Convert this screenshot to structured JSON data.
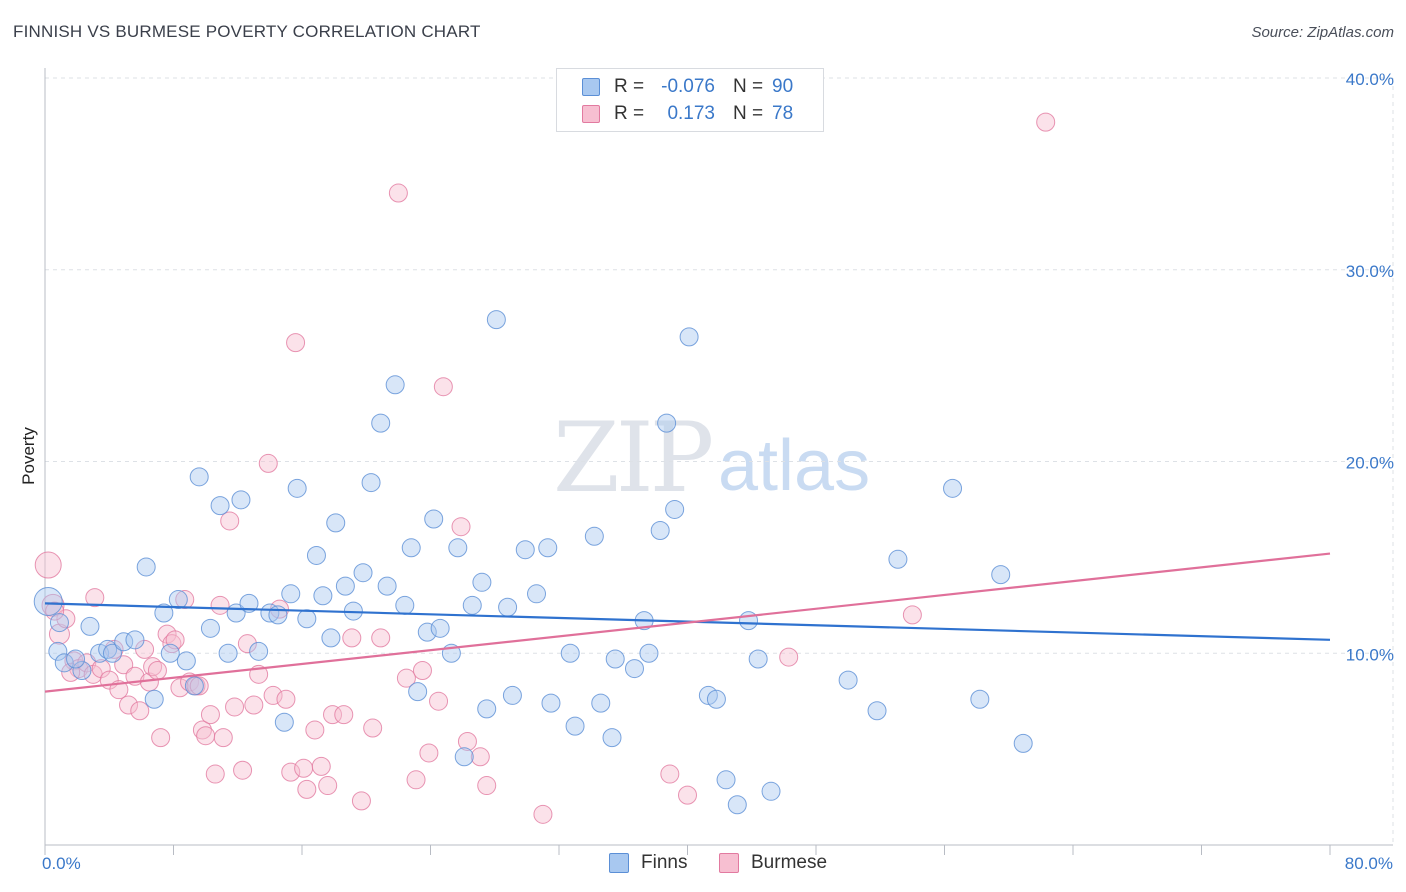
{
  "title": "FINNISH VS BURMESE POVERTY CORRELATION CHART",
  "source": "Source: ZipAtlas.com",
  "watermark": {
    "zip": "ZIP",
    "atlas": "atlas"
  },
  "legend": {
    "rows": [
      {
        "r_label": "R =",
        "r_value": "-0.076",
        "n_label": "N =",
        "n_value": "90",
        "color": "#a8c8f0",
        "border": "#5b8fd6"
      },
      {
        "r_label": "R =",
        "r_value": "0.173",
        "n_label": "N =",
        "n_value": "78",
        "color": "#f7bfd1",
        "border": "#e27aa0"
      }
    ]
  },
  "bottom_legend": {
    "finns": "Finns",
    "burmese": "Burmese"
  },
  "colors": {
    "finns_fill": "#a8c8f0",
    "finns_stroke": "#5b8fd6",
    "finns_line": "#2f72cf",
    "burmese_fill": "#f7bfd1",
    "burmese_stroke": "#e27aa0",
    "burmese_line": "#e0709a",
    "grid": "#dde1e6",
    "axis_text": "#3a78c9"
  },
  "chart_data": {
    "type": "scatter",
    "title": "FINNISH VS BURMESE POVERTY CORRELATION CHART",
    "xlabel": "",
    "ylabel": "Poverty",
    "xlim": [
      0,
      80
    ],
    "ylim": [
      0,
      40
    ],
    "x_tick_labels": [
      "0.0%",
      "80.0%"
    ],
    "y_ticks": [
      10,
      20,
      30,
      40
    ],
    "y_tick_labels": [
      "10.0%",
      "20.0%",
      "30.0%",
      "40.0%"
    ],
    "grid": true,
    "legend_position": "top-center",
    "series": [
      {
        "name": "Finns",
        "r": -0.076,
        "n": 90,
        "trend": [
          [
            0,
            12.6
          ],
          [
            80,
            10.7
          ]
        ],
        "points": [
          [
            0.2,
            12.7,
            14
          ],
          [
            0.8,
            10.1,
            9
          ],
          [
            1.2,
            9.5,
            9
          ],
          [
            2.3,
            9.1,
            9
          ],
          [
            2.8,
            11.4,
            9
          ],
          [
            3.4,
            10.0,
            9
          ],
          [
            3.9,
            10.2,
            9
          ],
          [
            4.2,
            10.0,
            9
          ],
          [
            4.9,
            10.6,
            9
          ],
          [
            5.6,
            10.7,
            9
          ],
          [
            6.3,
            14.5,
            9
          ],
          [
            6.8,
            7.6,
            9
          ],
          [
            7.4,
            12.1,
            9
          ],
          [
            7.8,
            10.0,
            9
          ],
          [
            8.3,
            12.8,
            9
          ],
          [
            8.8,
            9.6,
            9
          ],
          [
            9.3,
            8.3,
            9
          ],
          [
            9.6,
            19.2,
            9
          ],
          [
            10.3,
            11.3,
            9
          ],
          [
            10.9,
            17.7,
            9
          ],
          [
            11.4,
            10.0,
            9
          ],
          [
            11.9,
            12.1,
            9
          ],
          [
            12.2,
            18.0,
            9
          ],
          [
            12.7,
            12.6,
            9
          ],
          [
            13.3,
            10.1,
            9
          ],
          [
            14.0,
            12.1,
            9
          ],
          [
            14.5,
            12.0,
            9
          ],
          [
            14.9,
            6.4,
            9
          ],
          [
            15.3,
            13.1,
            9
          ],
          [
            15.7,
            18.6,
            9
          ],
          [
            16.3,
            11.8,
            9
          ],
          [
            16.9,
            15.1,
            9
          ],
          [
            17.3,
            13.0,
            9
          ],
          [
            17.8,
            10.8,
            9
          ],
          [
            18.1,
            16.8,
            9
          ],
          [
            18.7,
            13.5,
            9
          ],
          [
            19.2,
            12.2,
            9
          ],
          [
            19.8,
            14.2,
            9
          ],
          [
            20.3,
            18.9,
            9
          ],
          [
            20.9,
            22.0,
            9
          ],
          [
            21.3,
            13.5,
            9
          ],
          [
            21.8,
            24.0,
            9
          ],
          [
            22.4,
            12.5,
            9
          ],
          [
            22.8,
            15.5,
            9
          ],
          [
            23.2,
            8.0,
            9
          ],
          [
            23.8,
            11.1,
            9
          ],
          [
            24.2,
            17.0,
            9
          ],
          [
            24.6,
            11.3,
            9
          ],
          [
            25.3,
            10.0,
            9
          ],
          [
            25.7,
            15.5,
            9
          ],
          [
            26.1,
            4.6,
            9
          ],
          [
            26.6,
            12.5,
            9
          ],
          [
            27.2,
            13.7,
            9
          ],
          [
            27.5,
            7.1,
            9
          ],
          [
            28.1,
            27.4,
            9
          ],
          [
            28.8,
            12.4,
            9
          ],
          [
            29.1,
            7.8,
            9
          ],
          [
            29.9,
            15.4,
            9
          ],
          [
            30.6,
            13.1,
            9
          ],
          [
            31.3,
            15.5,
            9
          ],
          [
            31.5,
            7.4,
            9
          ],
          [
            32.7,
            10.0,
            9
          ],
          [
            33.0,
            6.2,
            9
          ],
          [
            34.2,
            16.1,
            9
          ],
          [
            34.6,
            7.4,
            9
          ],
          [
            35.3,
            5.6,
            9
          ],
          [
            35.5,
            9.7,
            9
          ],
          [
            36.7,
            9.2,
            9
          ],
          [
            37.3,
            11.7,
            9
          ],
          [
            37.6,
            10.0,
            9
          ],
          [
            38.3,
            16.4,
            9
          ],
          [
            38.7,
            22.0,
            9
          ],
          [
            39.2,
            17.5,
            9
          ],
          [
            40.1,
            26.5,
            9
          ],
          [
            41.3,
            7.8,
            9
          ],
          [
            41.8,
            7.6,
            9
          ],
          [
            42.4,
            3.4,
            9
          ],
          [
            43.1,
            2.1,
            9
          ],
          [
            43.8,
            11.7,
            9
          ],
          [
            44.4,
            9.7,
            9
          ],
          [
            45.2,
            2.8,
            9
          ],
          [
            50.0,
            8.6,
            9
          ],
          [
            51.8,
            7.0,
            9
          ],
          [
            53.1,
            14.9,
            9
          ],
          [
            56.5,
            18.6,
            9
          ],
          [
            58.2,
            7.6,
            9
          ],
          [
            59.5,
            14.1,
            9
          ],
          [
            60.9,
            5.3,
            9
          ],
          [
            0.9,
            11.6,
            9
          ],
          [
            1.9,
            9.7,
            9
          ]
        ]
      },
      {
        "name": "Burmese",
        "r": 0.173,
        "n": 78,
        "trend": [
          [
            0,
            8.0
          ],
          [
            80,
            15.2
          ]
        ],
        "points": [
          [
            0.2,
            14.6,
            13
          ],
          [
            0.5,
            12.5,
            11
          ],
          [
            0.9,
            11.0,
            10
          ],
          [
            1.3,
            11.8,
            9
          ],
          [
            1.8,
            9.6,
            9
          ],
          [
            2.1,
            9.2,
            9
          ],
          [
            2.6,
            9.5,
            9
          ],
          [
            3.0,
            8.9,
            9
          ],
          [
            3.1,
            12.9,
            9
          ],
          [
            3.5,
            9.2,
            9
          ],
          [
            4.0,
            8.6,
            9
          ],
          [
            4.3,
            10.2,
            9
          ],
          [
            4.6,
            8.1,
            9
          ],
          [
            4.9,
            9.4,
            9
          ],
          [
            5.2,
            7.3,
            9
          ],
          [
            5.6,
            8.8,
            9
          ],
          [
            5.9,
            7.0,
            9
          ],
          [
            6.2,
            10.2,
            9
          ],
          [
            6.5,
            8.5,
            9
          ],
          [
            6.7,
            9.3,
            9
          ],
          [
            7.0,
            9.1,
            9
          ],
          [
            7.2,
            5.6,
            9
          ],
          [
            7.6,
            11.0,
            9
          ],
          [
            7.9,
            10.5,
            9
          ],
          [
            8.1,
            10.7,
            9
          ],
          [
            8.4,
            8.2,
            9
          ],
          [
            8.7,
            12.8,
            9
          ],
          [
            9.0,
            8.5,
            9
          ],
          [
            9.4,
            8.3,
            9
          ],
          [
            9.6,
            8.3,
            9
          ],
          [
            9.8,
            6.0,
            9
          ],
          [
            10.0,
            5.7,
            9
          ],
          [
            10.3,
            6.8,
            9
          ],
          [
            10.6,
            3.7,
            9
          ],
          [
            10.9,
            12.5,
            9
          ],
          [
            11.1,
            5.6,
            9
          ],
          [
            11.5,
            16.9,
            9
          ],
          [
            11.8,
            7.2,
            9
          ],
          [
            12.3,
            3.9,
            9
          ],
          [
            12.6,
            10.5,
            9
          ],
          [
            13.0,
            7.3,
            9
          ],
          [
            13.3,
            8.9,
            9
          ],
          [
            13.9,
            19.9,
            9
          ],
          [
            14.2,
            7.8,
            9
          ],
          [
            14.6,
            12.3,
            9
          ],
          [
            15.0,
            7.6,
            9
          ],
          [
            15.3,
            3.8,
            9
          ],
          [
            15.6,
            26.2,
            9
          ],
          [
            16.1,
            4.0,
            9
          ],
          [
            16.3,
            2.9,
            9
          ],
          [
            16.8,
            6.0,
            9
          ],
          [
            17.2,
            4.1,
            9
          ],
          [
            17.6,
            3.1,
            9
          ],
          [
            17.9,
            6.8,
            9
          ],
          [
            18.6,
            6.8,
            9
          ],
          [
            19.1,
            10.8,
            9
          ],
          [
            19.7,
            2.3,
            9
          ],
          [
            20.4,
            6.1,
            9
          ],
          [
            20.9,
            10.8,
            9
          ],
          [
            22.0,
            34.0,
            9
          ],
          [
            22.5,
            8.7,
            9
          ],
          [
            23.1,
            3.4,
            9
          ],
          [
            23.5,
            9.1,
            9
          ],
          [
            23.9,
            4.8,
            9
          ],
          [
            24.5,
            7.5,
            9
          ],
          [
            24.8,
            23.9,
            9
          ],
          [
            25.9,
            16.6,
            9
          ],
          [
            26.3,
            5.4,
            9
          ],
          [
            27.1,
            4.6,
            9
          ],
          [
            27.5,
            3.1,
            9
          ],
          [
            31.0,
            1.6,
            9
          ],
          [
            38.9,
            3.7,
            9
          ],
          [
            40.0,
            2.6,
            9
          ],
          [
            46.3,
            9.8,
            9
          ],
          [
            54.0,
            12.0,
            9
          ],
          [
            62.3,
            37.7,
            9
          ],
          [
            0.6,
            12.2,
            9
          ],
          [
            1.6,
            9.0,
            9
          ]
        ]
      }
    ]
  }
}
